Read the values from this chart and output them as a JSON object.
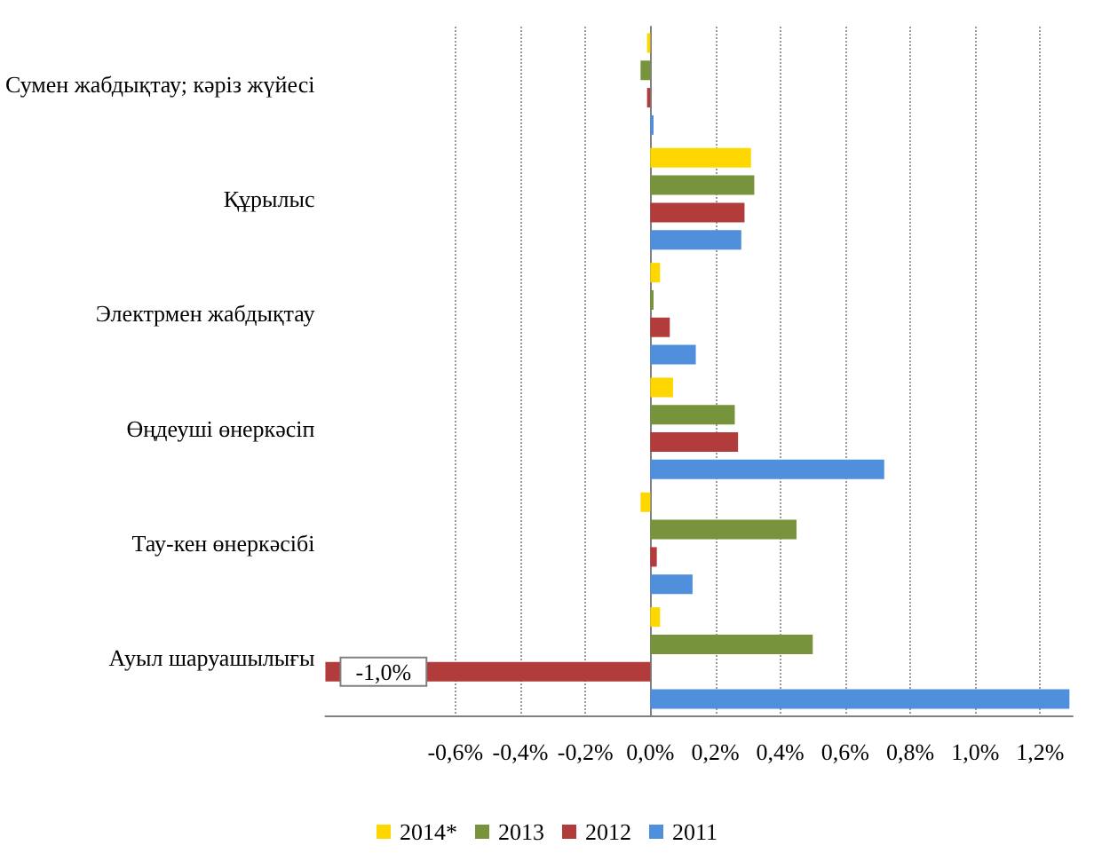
{
  "chart_data": {
    "type": "bar",
    "orientation": "horizontal",
    "categories": [
      "Сумен жабдықтау; кәріз жүйесі",
      "Құрылыс",
      "Электрмен жабдықтау",
      "Өңдеуші өнеркәсіп",
      "Тау-кен өнеркәсібі",
      "Ауыл шаруашылығы"
    ],
    "series": [
      {
        "name": "2014*",
        "color": "#ffd700",
        "values": [
          -0.01,
          0.31,
          0.03,
          0.07,
          -0.03,
          0.03
        ]
      },
      {
        "name": "2013",
        "color": "#77933c",
        "values": [
          -0.03,
          0.32,
          0.01,
          0.26,
          0.45,
          0.5
        ]
      },
      {
        "name": "2012",
        "color": "#b23c3c",
        "values": [
          -0.01,
          0.29,
          0.06,
          0.27,
          0.02,
          -1.0
        ],
        "value_labels": [
          null,
          null,
          null,
          null,
          null,
          "-1,0%"
        ]
      },
      {
        "name": "2011",
        "color": "#4f8fdc",
        "values": [
          0.01,
          0.28,
          0.14,
          0.72,
          0.13,
          1.29
        ]
      }
    ],
    "xlim": [
      -1.0,
      1.3
    ],
    "xticks": [
      {
        "value": -0.6,
        "label": "-0,6%"
      },
      {
        "value": -0.4,
        "label": "-0,4%"
      },
      {
        "value": -0.2,
        "label": "-0,2%"
      },
      {
        "value": 0,
        "label": "0,0%"
      },
      {
        "value": 0.2,
        "label": "0,2%"
      },
      {
        "value": 0.4,
        "label": "0,4%"
      },
      {
        "value": 0.6,
        "label": "0,6%"
      },
      {
        "value": 0.8,
        "label": "0,8%"
      },
      {
        "value": 1.0,
        "label": "1,0%"
      },
      {
        "value": 1.2,
        "label": "1,2%"
      }
    ],
    "grid": "x",
    "legend": "bottom"
  }
}
